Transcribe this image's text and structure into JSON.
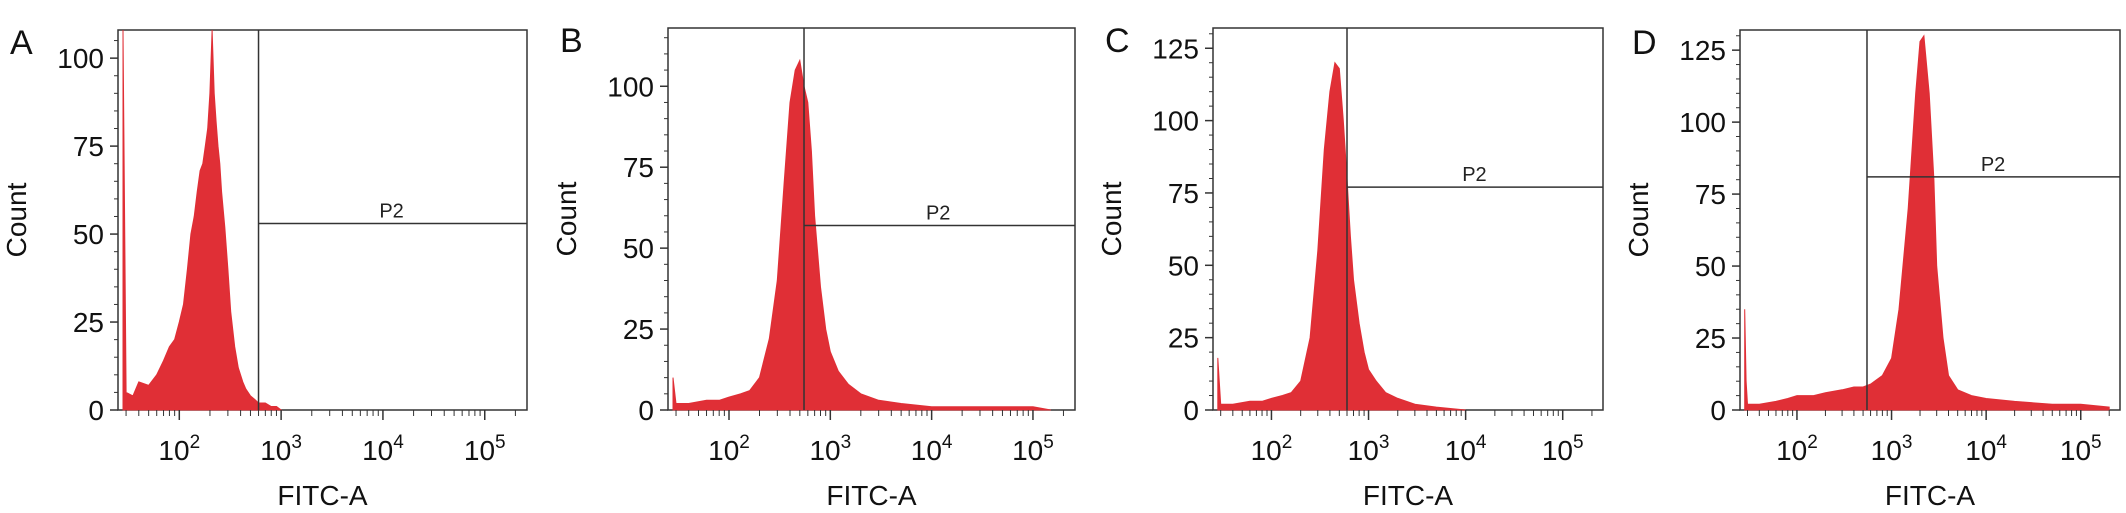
{
  "chart_data": [
    {
      "type": "area",
      "panel_label": "A",
      "xlabel": "FITC-A",
      "ylabel": "Count",
      "xscale": "log",
      "xlim": [
        25,
        260000
      ],
      "ylim": [
        0,
        108
      ],
      "yticks": [
        0,
        25,
        50,
        75,
        100
      ],
      "xticks": [
        {
          "value": 100,
          "base": "10",
          "exp": "2"
        },
        {
          "value": 1000,
          "base": "10",
          "exp": "3"
        },
        {
          "value": 10000,
          "base": "10",
          "exp": "4"
        },
        {
          "value": 100000,
          "base": "10",
          "exp": "5"
        }
      ],
      "gate": {
        "label": "P2",
        "x_min": 600,
        "level": 53
      },
      "color": "#e02f36",
      "x": [
        28,
        30,
        35,
        40,
        50,
        60,
        70,
        80,
        90,
        100,
        110,
        120,
        130,
        140,
        150,
        160,
        170,
        180,
        190,
        200,
        210,
        220,
        230,
        240,
        250,
        260,
        280,
        300,
        320,
        350,
        380,
        420,
        450,
        500,
        550,
        600,
        700,
        800,
        900,
        1000
      ],
      "y": [
        108,
        5,
        4,
        8,
        7,
        10,
        14,
        18,
        20,
        25,
        30,
        40,
        50,
        55,
        62,
        68,
        70,
        75,
        80,
        90,
        108,
        90,
        82,
        75,
        70,
        62,
        52,
        40,
        28,
        18,
        12,
        8,
        6,
        4,
        3,
        2,
        2,
        1,
        1,
        0
      ]
    },
    {
      "type": "area",
      "panel_label": "B",
      "xlabel": "FITC-A",
      "ylabel": "Count",
      "xscale": "log",
      "xlim": [
        25,
        260000
      ],
      "ylim": [
        0,
        118
      ],
      "yticks": [
        0,
        25,
        50,
        75,
        100
      ],
      "xticks": [
        {
          "value": 100,
          "base": "10",
          "exp": "2"
        },
        {
          "value": 1000,
          "base": "10",
          "exp": "3"
        },
        {
          "value": 10000,
          "base": "10",
          "exp": "4"
        },
        {
          "value": 100000,
          "base": "10",
          "exp": "5"
        }
      ],
      "gate": {
        "label": "P2",
        "x_min": 550,
        "level": 57
      },
      "color": "#e02f36",
      "x": [
        28,
        30,
        40,
        60,
        80,
        100,
        130,
        160,
        200,
        250,
        300,
        350,
        400,
        450,
        500,
        550,
        600,
        650,
        700,
        800,
        900,
        1000,
        1200,
        1500,
        2000,
        3000,
        5000,
        10000,
        100000,
        150000
      ],
      "y": [
        10,
        2,
        2,
        3,
        3,
        4,
        5,
        6,
        10,
        22,
        40,
        70,
        95,
        105,
        108,
        100,
        95,
        80,
        60,
        38,
        25,
        18,
        12,
        8,
        5,
        3,
        2,
        1,
        1,
        0
      ]
    },
    {
      "type": "area",
      "panel_label": "C",
      "xlabel": "FITC-A",
      "ylabel": "Count",
      "xscale": "log",
      "xlim": [
        25,
        260000
      ],
      "ylim": [
        0,
        132
      ],
      "yticks": [
        0,
        25,
        50,
        75,
        100,
        125
      ],
      "xticks": [
        {
          "value": 100,
          "base": "10",
          "exp": "2"
        },
        {
          "value": 1000,
          "base": "10",
          "exp": "3"
        },
        {
          "value": 10000,
          "base": "10",
          "exp": "4"
        },
        {
          "value": 100000,
          "base": "10",
          "exp": "5"
        }
      ],
      "gate": {
        "label": "P2",
        "x_min": 600,
        "level": 77
      },
      "color": "#e02f36",
      "x": [
        28,
        30,
        40,
        60,
        80,
        100,
        130,
        160,
        200,
        250,
        300,
        350,
        400,
        450,
        500,
        550,
        600,
        650,
        700,
        800,
        900,
        1000,
        1200,
        1500,
        2000,
        3000,
        5000,
        10000
      ],
      "y": [
        18,
        2,
        2,
        3,
        3,
        4,
        5,
        6,
        10,
        25,
        55,
        90,
        110,
        120,
        118,
        100,
        80,
        60,
        45,
        30,
        20,
        14,
        10,
        6,
        4,
        2,
        1,
        0
      ]
    },
    {
      "type": "area",
      "panel_label": "D",
      "xlabel": "FITC-A",
      "ylabel": "Count",
      "xscale": "log",
      "xlim": [
        25,
        260000
      ],
      "ylim": [
        0,
        132
      ],
      "yticks": [
        0,
        25,
        50,
        75,
        100,
        125
      ],
      "xticks": [
        {
          "value": 100,
          "base": "10",
          "exp": "2"
        },
        {
          "value": 1000,
          "base": "10",
          "exp": "3"
        },
        {
          "value": 10000,
          "base": "10",
          "exp": "4"
        },
        {
          "value": 100000,
          "base": "10",
          "exp": "5"
        }
      ],
      "gate": {
        "label": "P2",
        "x_min": 550,
        "level": 81
      },
      "color": "#e02f36",
      "x": [
        28,
        29,
        30,
        40,
        60,
        80,
        100,
        150,
        200,
        300,
        400,
        500,
        600,
        800,
        1000,
        1200,
        1500,
        1800,
        2000,
        2200,
        2500,
        2800,
        3000,
        3500,
        4000,
        5000,
        7000,
        10000,
        20000,
        50000,
        100000,
        200000
      ],
      "y": [
        35,
        10,
        2,
        2,
        3,
        4,
        5,
        5,
        6,
        7,
        8,
        8,
        9,
        12,
        18,
        35,
        70,
        110,
        128,
        130,
        110,
        80,
        50,
        25,
        12,
        7,
        5,
        4,
        3,
        2,
        2,
        1
      ]
    }
  ]
}
